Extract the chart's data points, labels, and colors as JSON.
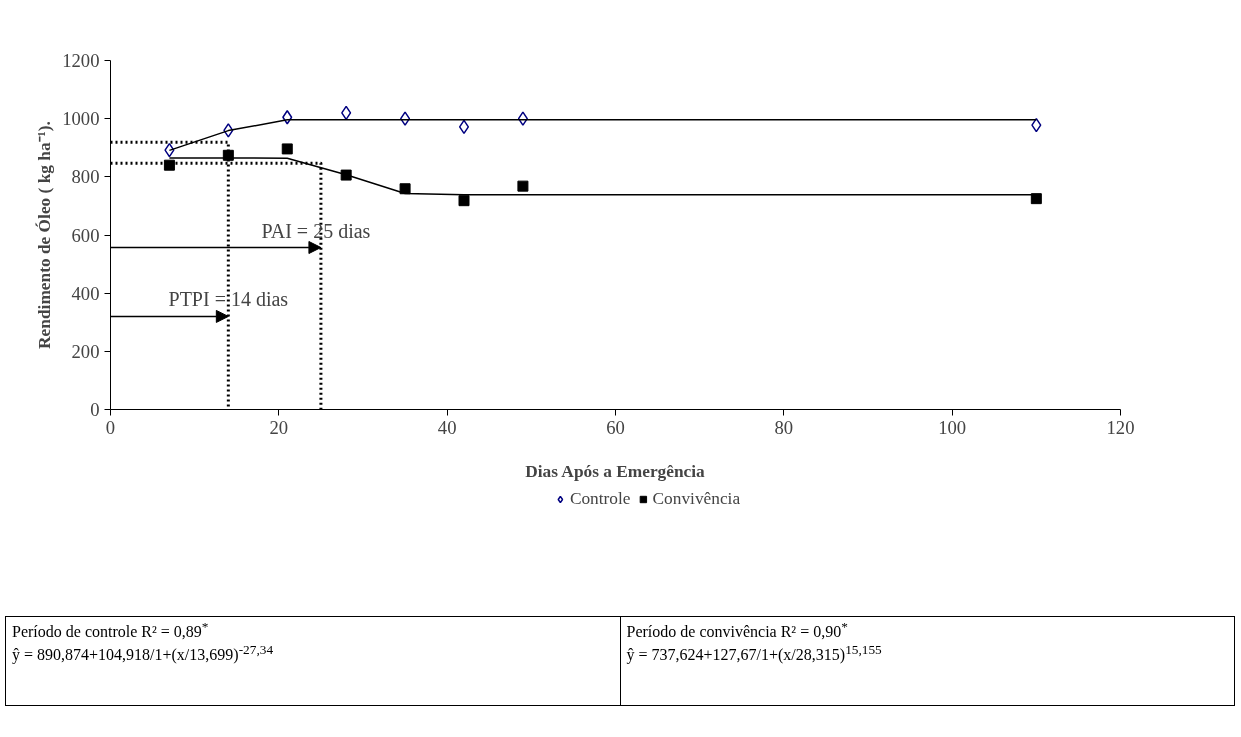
{
  "chart_data": {
    "type": "scatter",
    "xlabel": "Dias Após a Emergência",
    "ylabel": "Rendimento de Óleo ( kg ha⁻¹).",
    "x": [
      7,
      14,
      21,
      28,
      35,
      42,
      49,
      110
    ],
    "xlim": [
      0,
      120
    ],
    "xticks": [
      0,
      20,
      40,
      60,
      80,
      100,
      120
    ],
    "ylim": [
      0,
      1200
    ],
    "yticks": [
      0,
      200,
      400,
      600,
      800,
      1000,
      1200
    ],
    "grid": false,
    "legend": "bottom",
    "series": [
      {
        "name": "Controle",
        "color": "#000080",
        "marker": "diamond",
        "values": [
          892,
          960,
          1005,
          1020,
          1000,
          972,
          1000,
          978
        ]
      },
      {
        "name": "Convivência",
        "color": "#000000",
        "marker": "square",
        "values": [
          840,
          874,
          896,
          806,
          759,
          718,
          768,
          725
        ]
      },
      {
        "type": "line",
        "color": "#000000",
        "line_style": "solid",
        "values": [
          891,
          959,
          996,
          996,
          996,
          996,
          996,
          996
        ]
      },
      {
        "type": "line",
        "color": "#000000",
        "line_style": "solid",
        "values": [
          865,
          865,
          864,
          807,
          743,
          738,
          738,
          738
        ]
      },
      {
        "type": "line",
        "color": "#000000",
        "line_style": "dotted",
        "x": [
          0,
          14,
          14
        ],
        "values": [
          919,
          919,
          0
        ]
      },
      {
        "type": "line",
        "color": "#000000",
        "line_style": "dotted",
        "x": [
          0,
          25,
          25
        ],
        "values": [
          847,
          847,
          0
        ]
      }
    ],
    "annotations": [
      {
        "text": "PAI  =  25 dias",
        "x": 25,
        "y": 557
      },
      {
        "text": "PTPI = 14 dias",
        "x": 14,
        "y": 320
      },
      "Período de controle  R² = 0,89$^{*}$",
      "ŷ = 890,874+104,918/1+(x/13,699)$^{-27,34}$",
      "Período de convivência  R² = 0,90$^{*}$",
      "ŷ = 737,624+127,67/1+(x/28,315)$^{15,155}$"
    ]
  }
}
